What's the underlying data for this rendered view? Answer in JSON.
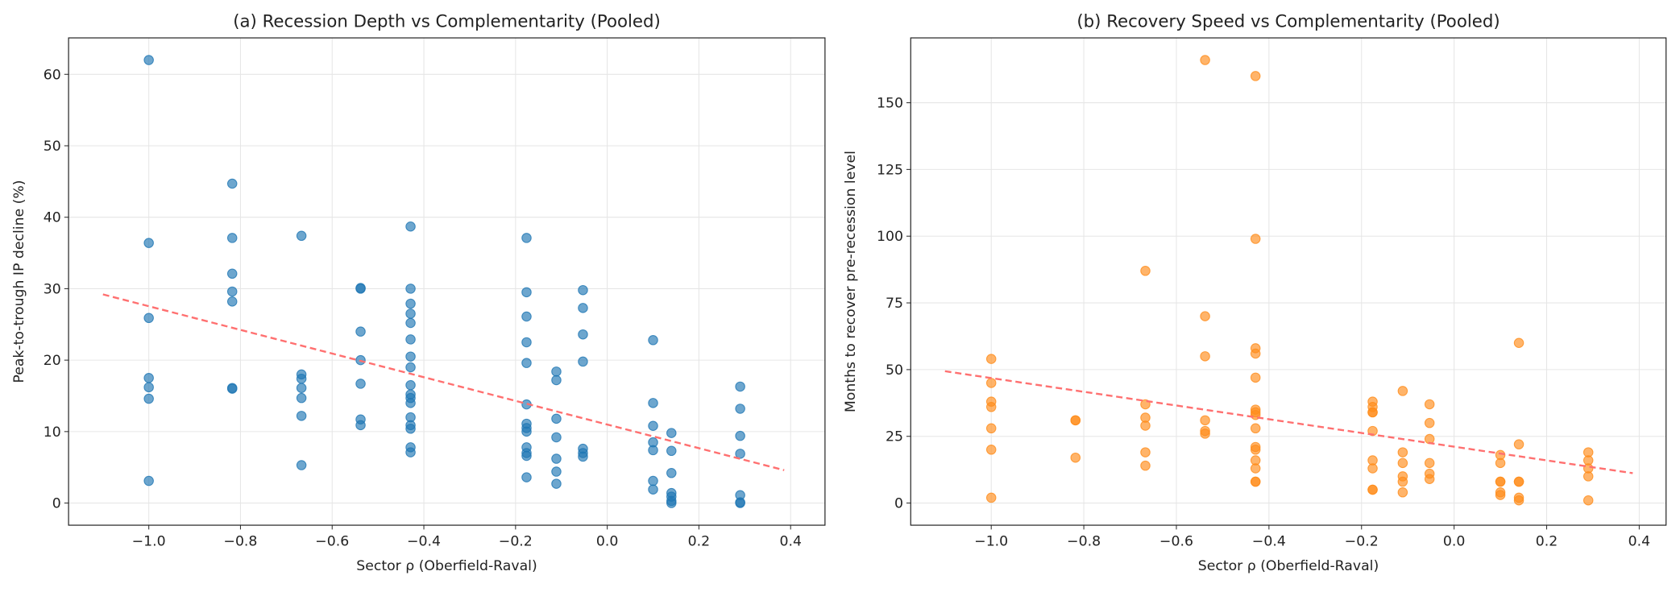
{
  "chart_data": [
    {
      "type": "scatter",
      "title": "(a) Recession Depth vs Complementarity (Pooled)",
      "x_label": "Sector ρ (Oberfield-Raval)",
      "y_label": "Peak-to-trough IP decline (%)",
      "xlim": [
        -1.175,
        0.475
      ],
      "ylim": [
        -3.1,
        65.1
      ],
      "xticks": [
        {
          "value": -1.0,
          "label": "−1.0"
        },
        {
          "value": -0.8,
          "label": "−0.8"
        },
        {
          "value": -0.6,
          "label": "−0.6"
        },
        {
          "value": -0.4,
          "label": "−0.4"
        },
        {
          "value": -0.2,
          "label": "−0.2"
        },
        {
          "value": 0.0,
          "label": "0.0"
        },
        0.2,
        0.4
      ],
      "yticks": [
        0,
        10,
        20,
        30,
        40,
        50,
        60
      ],
      "grid": true,
      "series": [
        {
          "color": "#1f77b4",
          "x": [
            -1,
            -1,
            -1,
            -1,
            -1,
            -1,
            -1,
            -0.818,
            -0.818,
            -0.818,
            -0.818,
            -0.818,
            -0.818,
            -0.818,
            -0.667,
            -0.667,
            -0.667,
            -0.667,
            -0.667,
            -0.667,
            -0.667,
            -0.538,
            -0.538,
            -0.538,
            -0.538,
            -0.538,
            -0.538,
            -0.538,
            -0.429,
            -0.429,
            -0.429,
            -0.429,
            -0.429,
            -0.429,
            -0.429,
            -0.429,
            -0.429,
            -0.429,
            -0.429,
            -0.429,
            -0.429,
            -0.429,
            -0.429,
            -0.429,
            -0.429,
            -0.176,
            -0.176,
            -0.176,
            -0.176,
            -0.176,
            -0.176,
            -0.176,
            -0.176,
            -0.176,
            -0.176,
            -0.176,
            -0.176,
            -0.176,
            -0.111,
            -0.111,
            -0.111,
            -0.111,
            -0.111,
            -0.111,
            -0.111,
            -0.053,
            -0.053,
            -0.053,
            -0.053,
            -0.053,
            -0.053,
            -0.053,
            0.1,
            0.1,
            0.1,
            0.1,
            0.1,
            0.1,
            0.1,
            0.14,
            0.14,
            0.14,
            0.14,
            0.14,
            0.14,
            0.14,
            0.29,
            0.29,
            0.29,
            0.29,
            0.29,
            0.29,
            0.29
          ],
          "values": [
            62,
            36.4,
            25.9,
            17.5,
            16.2,
            14.6,
            3.1,
            44.7,
            37.1,
            32.1,
            29.6,
            28.2,
            16.1,
            16.0,
            37.4,
            18.0,
            17.4,
            16.1,
            14.7,
            12.2,
            5.3,
            30.1,
            30.0,
            24.0,
            20.0,
            16.7,
            11.7,
            10.9,
            38.7,
            30.0,
            27.9,
            26.5,
            25.2,
            22.9,
            20.5,
            19.0,
            16.5,
            15.2,
            14.7,
            14.0,
            12.0,
            10.9,
            10.4,
            7.8,
            7.1,
            37.1,
            29.5,
            26.1,
            22.5,
            19.6,
            13.8,
            11.1,
            10.5,
            10.0,
            7.8,
            7.0,
            6.6,
            3.6,
            18.4,
            17.2,
            11.8,
            9.2,
            6.2,
            4.4,
            2.7,
            29.8,
            27.3,
            23.6,
            19.8,
            7.6,
            7.0,
            6.5,
            22.8,
            14.0,
            10.8,
            8.5,
            7.4,
            3.1,
            1.9,
            9.8,
            7.3,
            4.2,
            1.4,
            0.9,
            0.3,
            0.0,
            16.3,
            13.2,
            9.4,
            6.9,
            1.1,
            0.1,
            0.0
          ]
        }
      ],
      "trend": {
        "color": "#ff7070",
        "x": [
          -1.1,
          0.386
        ],
        "values": [
          29.2,
          4.6
        ]
      }
    },
    {
      "type": "scatter",
      "title": "(b) Recovery Speed vs Complementarity (Pooled)",
      "x_label": "Sector ρ (Oberfield-Raval)",
      "y_label": "Months to recover pre-recession level",
      "xlim": [
        -1.174,
        0.458
      ],
      "ylim": [
        -8.3,
        174.3
      ],
      "xticks": [
        {
          "value": -1.0,
          "label": "−1.0"
        },
        {
          "value": -0.8,
          "label": "−0.8"
        },
        {
          "value": -0.6,
          "label": "−0.6"
        },
        {
          "value": -0.4,
          "label": "−0.4"
        },
        {
          "value": -0.2,
          "label": "−0.2"
        },
        {
          "value": 0.0,
          "label": "0.0"
        },
        0.2,
        0.4
      ],
      "yticks": [
        0,
        25,
        50,
        75,
        100,
        125,
        150
      ],
      "grid": true,
      "series": [
        {
          "color": "#ff8c1a",
          "x": [
            -1,
            -1,
            -1,
            -1,
            -1,
            -1,
            -1,
            -0.818,
            -0.818,
            -0.818,
            -0.667,
            -0.667,
            -0.667,
            -0.667,
            -0.667,
            -0.667,
            -0.538,
            -0.538,
            -0.538,
            -0.538,
            -0.538,
            -0.538,
            -0.429,
            -0.429,
            -0.429,
            -0.429,
            -0.429,
            -0.429,
            -0.429,
            -0.429,
            -0.429,
            -0.429,
            -0.429,
            -0.429,
            -0.429,
            -0.429,
            -0.429,
            -0.176,
            -0.176,
            -0.176,
            -0.176,
            -0.176,
            -0.176,
            -0.176,
            -0.176,
            -0.176,
            -0.111,
            -0.111,
            -0.111,
            -0.111,
            -0.111,
            -0.111,
            -0.053,
            -0.053,
            -0.053,
            -0.053,
            -0.053,
            -0.053,
            0.1,
            0.1,
            0.1,
            0.1,
            0.1,
            0.1,
            0.14,
            0.14,
            0.14,
            0.14,
            0.14,
            0.14,
            0.29,
            0.29,
            0.29,
            0.29,
            0.29
          ],
          "values": [
            54,
            45,
            38,
            36,
            28,
            20,
            2,
            31,
            31,
            17,
            87,
            37,
            32,
            29,
            19,
            14,
            166,
            70,
            55,
            31,
            27,
            26,
            160,
            99,
            58,
            56,
            47,
            35,
            34,
            33,
            28,
            21,
            20,
            16,
            13,
            8,
            8,
            38,
            36,
            34,
            34,
            27,
            16,
            13,
            5,
            5,
            42,
            19,
            15,
            10,
            8,
            4,
            37,
            30,
            24,
            15,
            11,
            9,
            18,
            15,
            8,
            8,
            4,
            3,
            60,
            22,
            8,
            8,
            2,
            1,
            19,
            16,
            13,
            10,
            1
          ]
        }
      ],
      "trend": {
        "color": "#ff7070",
        "x": [
          -1.1,
          0.386
        ],
        "values": [
          49.4,
          11.2
        ]
      }
    }
  ]
}
